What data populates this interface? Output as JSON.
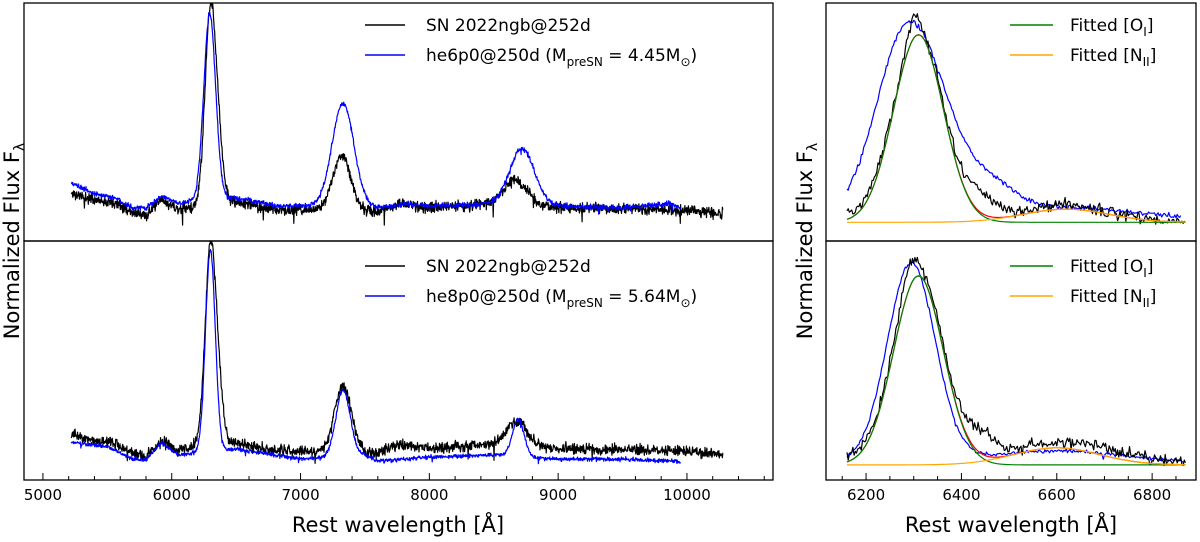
{
  "figure": {
    "ylabel_left": {
      "main": "Normalized Flux F",
      "sub": "λ"
    },
    "ylabel_right": {
      "main": "Normalized Flux F",
      "sub": "λ"
    },
    "xlabel_left": "Rest wavelength [Å]",
    "xlabel_right": "Rest wavelength [Å]"
  },
  "chart_data": [
    {
      "panel": "top-left",
      "type": "line",
      "xlim": [
        4853,
        10668
      ],
      "ylim": [
        -0.1,
        1.05
      ],
      "grid": false,
      "legend_placement": "top-right",
      "legend": [
        {
          "series": 0,
          "parts": [
            {
              "t": "SN 2022ngb@252d"
            }
          ]
        },
        {
          "series": 1,
          "parts": [
            {
              "t": "he6p0@250d (M"
            },
            {
              "t": "preSN",
              "sub": true
            },
            {
              "t": " = 4.45M"
            },
            {
              "t": "⊙",
              "sub": true
            },
            {
              "t": ")"
            }
          ]
        }
      ],
      "series": [
        {
          "name": "SN 2022ngb@252d",
          "color": "#000000",
          "range": [
            5220,
            10280
          ],
          "noise": 0.016,
          "seed": 11,
          "continuum": [
            [
              5220,
              0.13
            ],
            [
              5400,
              0.1
            ],
            [
              5550,
              0.09
            ],
            [
              5700,
              0.04
            ],
            [
              5800,
              0.02
            ],
            [
              5920,
              0.1
            ],
            [
              6050,
              0.05
            ],
            [
              6150,
              0.06
            ],
            [
              6500,
              0.09
            ],
            [
              6800,
              0.05
            ],
            [
              7000,
              0.05
            ],
            [
              7600,
              0.04
            ],
            [
              7760,
              0.08
            ],
            [
              8000,
              0.06
            ],
            [
              8500,
              0.08
            ],
            [
              9000,
              0.06
            ],
            [
              10000,
              0.05
            ],
            [
              10280,
              0.03
            ]
          ],
          "lines": [
            [
              6300,
              42,
              0.92
            ],
            [
              6364,
              38,
              0.22
            ],
            [
              7320,
              70,
              0.27
            ],
            [
              8670,
              90,
              0.12
            ]
          ]
        },
        {
          "name": "he6p0@250d",
          "color": "#0000ff",
          "range": [
            5220,
            9950
          ],
          "noise": 0.008,
          "seed": 5,
          "continuum": [
            [
              5220,
              0.18
            ],
            [
              5400,
              0.13
            ],
            [
              5550,
              0.11
            ],
            [
              5700,
              0.06
            ],
            [
              5800,
              0.06
            ],
            [
              5920,
              0.12
            ],
            [
              6050,
              0.08
            ],
            [
              6150,
              0.09
            ],
            [
              6500,
              0.11
            ],
            [
              6800,
              0.07
            ],
            [
              7000,
              0.07
            ],
            [
              7600,
              0.06
            ],
            [
              7800,
              0.08
            ],
            [
              8000,
              0.07
            ],
            [
              8500,
              0.08
            ],
            [
              9000,
              0.07
            ],
            [
              9500,
              0.06
            ],
            [
              9880,
              0.08
            ],
            [
              9950,
              0.06
            ]
          ],
          "lines": [
            [
              6295,
              46,
              0.9
            ],
            [
              7330,
              85,
              0.5
            ],
            [
              8720,
              95,
              0.27
            ]
          ]
        }
      ]
    },
    {
      "panel": "bottom-left",
      "type": "line",
      "xlim": [
        4853,
        10668
      ],
      "ylim": [
        -0.1,
        1.05
      ],
      "grid": false,
      "xlabel": "Rest wavelength [Å]",
      "xticks": [
        5000,
        6000,
        7000,
        8000,
        9000,
        10000
      ],
      "xminor_step": 200,
      "legend_placement": "top-right",
      "legend": [
        {
          "series": 0,
          "parts": [
            {
              "t": "SN 2022ngb@252d"
            }
          ]
        },
        {
          "series": 1,
          "parts": [
            {
              "t": "he8p0@250d (M"
            },
            {
              "t": "preSN",
              "sub": true
            },
            {
              "t": " = 5.64M"
            },
            {
              "t": "⊙",
              "sub": true
            },
            {
              "t": ")"
            }
          ]
        }
      ],
      "series": [
        {
          "name": "SN 2022ngb@252d",
          "color": "#000000",
          "range": [
            5220,
            10280
          ],
          "noise": 0.016,
          "seed": 23,
          "continuum": [
            [
              5220,
              0.12
            ],
            [
              5400,
              0.09
            ],
            [
              5550,
              0.08
            ],
            [
              5700,
              0.03
            ],
            [
              5800,
              0.01
            ],
            [
              5920,
              0.09
            ],
            [
              6050,
              0.04
            ],
            [
              6150,
              0.06
            ],
            [
              6500,
              0.08
            ],
            [
              6800,
              0.04
            ],
            [
              7000,
              0.04
            ],
            [
              7600,
              0.03
            ],
            [
              7760,
              0.07
            ],
            [
              8000,
              0.05
            ],
            [
              8500,
              0.07
            ],
            [
              9000,
              0.05
            ],
            [
              10000,
              0.04
            ],
            [
              10280,
              0.02
            ]
          ],
          "lines": [
            [
              6300,
              42,
              0.93
            ],
            [
              6364,
              38,
              0.2
            ],
            [
              7330,
              65,
              0.32
            ],
            [
              8680,
              80,
              0.12
            ]
          ]
        },
        {
          "name": "he8p0@250d",
          "color": "#0000ff",
          "range": [
            5220,
            9950
          ],
          "noise": 0.006,
          "seed": 9,
          "continuum": [
            [
              5220,
              0.08
            ],
            [
              5500,
              0.06
            ],
            [
              5700,
              0.0
            ],
            [
              5800,
              0.0
            ],
            [
              5920,
              0.08
            ],
            [
              6050,
              0.02
            ],
            [
              6500,
              0.05
            ],
            [
              7000,
              0.0
            ],
            [
              7500,
              0.02
            ],
            [
              7600,
              -0.01
            ],
            [
              8000,
              0.01
            ],
            [
              8500,
              0.02
            ],
            [
              9000,
              0.0
            ],
            [
              9500,
              0.0
            ],
            [
              9950,
              -0.01
            ]
          ],
          "lines": [
            [
              6300,
              38,
              0.97
            ],
            [
              7330,
              55,
              0.32
            ],
            [
              8690,
              45,
              0.18
            ]
          ]
        }
      ]
    },
    {
      "panel": "top-right",
      "type": "line",
      "xlim": [
        6116,
        6892
      ],
      "ylim": [
        -0.1,
        1.17
      ],
      "grid": false,
      "legend_placement": "top-right",
      "legend": [
        {
          "series": 3,
          "parts": [
            {
              "t": "Fitted [O"
            },
            {
              "t": "I",
              "sub": true
            },
            {
              "t": "]"
            }
          ]
        },
        {
          "series": 4,
          "parts": [
            {
              "t": "Fitted [N"
            },
            {
              "t": "II",
              "sub": true
            },
            {
              "t": "]"
            }
          ]
        }
      ],
      "series": [
        {
          "name": "he6p0@250d",
          "color": "#0000ff",
          "range": [
            6160,
            6860
          ],
          "noise": 0.008,
          "seed": 31,
          "continuum": [
            [
              6160,
              0.04
            ],
            [
              6500,
              0.09
            ],
            [
              6700,
              0.07
            ],
            [
              6860,
              0.03
            ]
          ],
          "lines": [
            [
              6285,
              62,
              0.98
            ],
            [
              6360,
              40,
              0.15
            ],
            [
              6440,
              55,
              0.17
            ]
          ]
        },
        {
          "name": "SN 2022ngb@252d",
          "color": "#000000",
          "range": [
            6160,
            6870
          ],
          "noise": 0.02,
          "seed": 41,
          "continuum": [
            [
              6160,
              0.03
            ],
            [
              6870,
              0.0
            ]
          ],
          "lines": [
            [
              6310,
              52,
              1.0
            ],
            [
              6300,
              10,
              0.1
            ],
            [
              6440,
              30,
              0.1
            ],
            [
              6620,
              90,
              0.08
            ]
          ]
        },
        {
          "name": "total fit",
          "color": "#ff0000",
          "range": [
            6160,
            6870
          ],
          "noise": 0,
          "seed": 1,
          "continuum": [
            [
              6160,
              0
            ],
            [
              6870,
              0
            ]
          ],
          "lines": [
            [
              6310,
              52,
              1.0
            ],
            [
              6620,
              90,
              0.07
            ]
          ]
        },
        {
          "name": "Fitted [OI]",
          "color": "#008000",
          "range": [
            6160,
            6870
          ],
          "noise": 0,
          "seed": 1,
          "continuum": [
            [
              6160,
              0
            ],
            [
              6870,
              0
            ]
          ],
          "lines": [
            [
              6310,
              52,
              1.0
            ]
          ]
        },
        {
          "name": "Fitted [NII]",
          "color": "#ffa500",
          "range": [
            6160,
            6870
          ],
          "noise": 0,
          "seed": 1,
          "continuum": [
            [
              6160,
              0
            ],
            [
              6870,
              0
            ]
          ],
          "lines": [
            [
              6620,
              90,
              0.07
            ]
          ]
        }
      ]
    },
    {
      "panel": "bottom-right",
      "type": "line",
      "xlim": [
        6116,
        6892
      ],
      "ylim": [
        -0.08,
        1.185
      ],
      "grid": false,
      "xlabel": "Rest wavelength [Å]",
      "xticks": [
        6200,
        6400,
        6600,
        6800
      ],
      "xminor_step": 50,
      "legend_placement": "top-right",
      "legend": [
        {
          "series": 3,
          "parts": [
            {
              "t": "Fitted [O"
            },
            {
              "t": "I",
              "sub": true
            },
            {
              "t": "]"
            }
          ]
        },
        {
          "series": 4,
          "parts": [
            {
              "t": "Fitted [N"
            },
            {
              "t": "II",
              "sub": true
            },
            {
              "t": "]"
            }
          ]
        }
      ],
      "series": [
        {
          "name": "he8p0@250d",
          "color": "#0000ff",
          "range": [
            6160,
            6870
          ],
          "noise": 0.006,
          "seed": 51,
          "continuum": [
            [
              6160,
              0.02
            ],
            [
              6870,
              0.01
            ]
          ],
          "lines": [
            [
              6295,
              50,
              1.05
            ],
            [
              6600,
              140,
              0.06
            ]
          ]
        },
        {
          "name": "SN 2022ngb@252d",
          "color": "#000000",
          "range": [
            6160,
            6870
          ],
          "noise": 0.02,
          "seed": 61,
          "continuum": [
            [
              6160,
              0.03
            ],
            [
              6870,
              0.0
            ]
          ],
          "lines": [
            [
              6310,
              52,
              1.0
            ],
            [
              6290,
              14,
              0.1
            ],
            [
              6440,
              28,
              0.1
            ],
            [
              6620,
              110,
              0.11
            ]
          ]
        },
        {
          "name": "total fit",
          "color": "#ff0000",
          "range": [
            6160,
            6870
          ],
          "noise": 0,
          "seed": 1,
          "continuum": [
            [
              6160,
              0
            ],
            [
              6870,
              0
            ]
          ],
          "lines": [
            [
              6310,
              52,
              1.0
            ],
            [
              6600,
              90,
              0.09
            ]
          ]
        },
        {
          "name": "Fitted [OI]",
          "color": "#008000",
          "range": [
            6160,
            6870
          ],
          "noise": 0,
          "seed": 1,
          "continuum": [
            [
              6160,
              0
            ],
            [
              6870,
              0
            ]
          ],
          "lines": [
            [
              6310,
              52,
              1.0
            ]
          ]
        },
        {
          "name": "Fitted [NII]",
          "color": "#ffa500",
          "range": [
            6160,
            6870
          ],
          "noise": 0,
          "seed": 1,
          "continuum": [
            [
              6160,
              0
            ],
            [
              6870,
              0
            ]
          ],
          "lines": [
            [
              6600,
              90,
              0.09
            ]
          ]
        }
      ]
    }
  ]
}
